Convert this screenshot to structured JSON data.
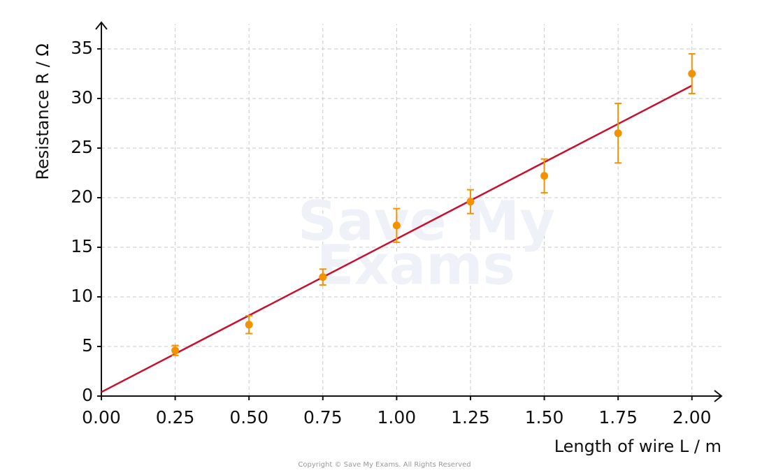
{
  "chart_data": {
    "type": "scatter",
    "x_label": "Length of wire L / m",
    "y_label": "Resistance R / Ω",
    "watermark": [
      "Save My",
      "Exams"
    ],
    "copyright": "Copyright © Save My Exams. All Rights Reserved",
    "xlim": [
      0,
      2.1
    ],
    "ylim": [
      0,
      37.5
    ],
    "xticks": [
      {
        "value": 0,
        "label": "0.00"
      },
      {
        "value": 0.25,
        "label": "0.25"
      },
      {
        "value": 0.5,
        "label": "0.50"
      },
      {
        "value": 0.75,
        "label": "0.75"
      },
      {
        "value": 1,
        "label": "1.00"
      },
      {
        "value": 1.25,
        "label": "1.25"
      },
      {
        "value": 1.5,
        "label": "1.50"
      },
      {
        "value": 1.75,
        "label": "1.75"
      },
      {
        "value": 2,
        "label": "2.00"
      }
    ],
    "yticks": [
      0,
      5,
      10,
      15,
      20,
      25,
      30,
      35
    ],
    "grid": true,
    "series": [
      {
        "type": "scatter",
        "color": "#f39200",
        "x": [
          0.25,
          0.5,
          0.75,
          1.0,
          1.25,
          1.5,
          1.75,
          2.0
        ],
        "values": [
          4.6,
          7.2,
          12.0,
          17.2,
          19.6,
          22.2,
          26.5,
          32.5
        ],
        "errors": [
          0.5,
          0.9,
          0.8,
          1.7,
          1.2,
          1.7,
          3.0,
          2.0
        ]
      },
      {
        "type": "line",
        "color": "#c8102e",
        "x": [
          0,
          2.0
        ],
        "values": [
          0.4,
          31.3
        ]
      }
    ]
  }
}
